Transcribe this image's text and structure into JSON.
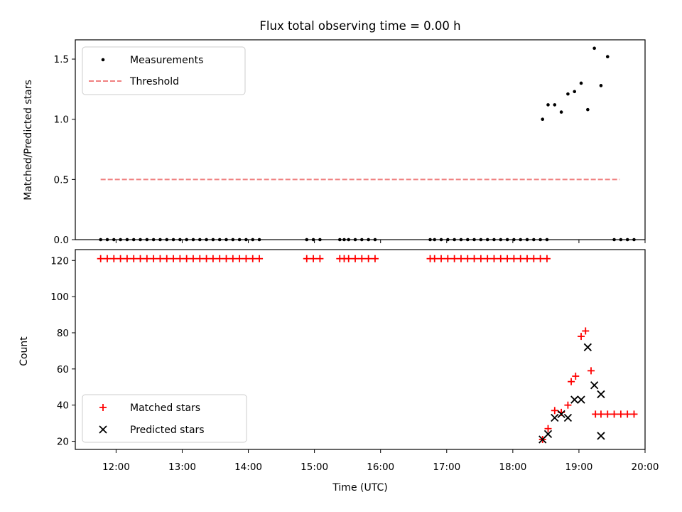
{
  "chart_data": [
    {
      "type": "scatter",
      "title": "Flux total observing time = 0.00 h",
      "xlabel": "",
      "ylabel": "Matched/Predicted stars",
      "xlim": [
        "11:23",
        "20:00"
      ],
      "ylim": [
        0,
        1.66
      ],
      "yticks": [
        0.0,
        0.5,
        1.0,
        1.5
      ],
      "ytick_labels": [
        "0.0",
        "0.5",
        "1.0",
        "1.5"
      ],
      "legend": {
        "position": "upper-left",
        "entries": [
          "Measurements",
          "Threshold"
        ]
      },
      "grid": false,
      "series": [
        {
          "name": "Measurements",
          "marker": "dot",
          "color": "#000000",
          "x": [
            "11:46",
            "11:52",
            "11:58",
            "12:04",
            "12:10",
            "12:16",
            "12:22",
            "12:28",
            "12:34",
            "12:40",
            "12:46",
            "12:52",
            "12:58",
            "13:04",
            "13:10",
            "13:16",
            "13:22",
            "13:28",
            "13:34",
            "13:40",
            "13:46",
            "13:52",
            "13:58",
            "14:04",
            "14:10",
            "14:53",
            "14:59",
            "15:05",
            "15:23",
            "15:27",
            "15:31",
            "15:37",
            "15:43",
            "15:49",
            "15:55",
            "16:45",
            "16:49",
            "16:55",
            "17:01",
            "17:07",
            "17:13",
            "17:19",
            "17:25",
            "17:31",
            "17:37",
            "17:43",
            "17:49",
            "17:55",
            "18:01",
            "18:07",
            "18:13",
            "18:19",
            "18:25",
            "18:31",
            "18:27",
            "18:32",
            "18:38",
            "18:44",
            "18:50",
            "18:56",
            "19:02",
            "19:08",
            "19:14",
            "19:20",
            "19:26",
            "19:32",
            "19:38",
            "19:44",
            "19:50"
          ],
          "y": [
            0,
            0,
            0,
            0,
            0,
            0,
            0,
            0,
            0,
            0,
            0,
            0,
            0,
            0,
            0,
            0,
            0,
            0,
            0,
            0,
            0,
            0,
            0,
            0,
            0,
            0,
            0,
            0,
            0,
            0,
            0,
            0,
            0,
            0,
            0,
            0,
            0,
            0,
            0,
            0,
            0,
            0,
            0,
            0,
            0,
            0,
            0,
            0,
            0,
            0,
            0,
            0,
            0,
            0,
            1.0,
            1.12,
            1.12,
            1.06,
            1.21,
            1.23,
            1.3,
            1.08,
            1.59,
            1.28,
            1.52,
            0,
            0,
            0,
            0
          ]
        },
        {
          "name": "Threshold",
          "type": "line",
          "style": "dashed",
          "color": "#f08080",
          "x": [
            "11:46",
            "19:37"
          ],
          "y": [
            0.5,
            0.5
          ]
        }
      ]
    },
    {
      "type": "scatter",
      "title": "",
      "xlabel": "Time (UTC)",
      "ylabel": "Count",
      "xlim": [
        "11:23",
        "20:00"
      ],
      "xticks": [
        "12:00",
        "13:00",
        "14:00",
        "15:00",
        "16:00",
        "17:00",
        "18:00",
        "19:00",
        "20:00"
      ],
      "ylim": [
        15.5,
        126
      ],
      "yticks": [
        20,
        40,
        60,
        80,
        100,
        120
      ],
      "ytick_labels": [
        "20",
        "40",
        "60",
        "80",
        "100",
        "120"
      ],
      "legend": {
        "position": "lower-left",
        "entries": [
          "Matched stars",
          "Predicted stars"
        ]
      },
      "grid": false,
      "series": [
        {
          "name": "Matched stars",
          "marker": "plus",
          "color": "#ff0000",
          "x": [
            "11:46",
            "11:52",
            "11:58",
            "12:04",
            "12:10",
            "12:16",
            "12:22",
            "12:28",
            "12:34",
            "12:40",
            "12:46",
            "12:52",
            "12:58",
            "13:04",
            "13:10",
            "13:16",
            "13:22",
            "13:28",
            "13:34",
            "13:40",
            "13:46",
            "13:52",
            "13:58",
            "14:04",
            "14:10",
            "14:53",
            "14:59",
            "15:05",
            "15:23",
            "15:27",
            "15:31",
            "15:37",
            "15:43",
            "15:49",
            "15:55",
            "16:45",
            "16:49",
            "16:55",
            "17:01",
            "17:07",
            "17:13",
            "17:19",
            "17:25",
            "17:31",
            "17:37",
            "17:43",
            "17:49",
            "17:55",
            "18:01",
            "18:07",
            "18:13",
            "18:19",
            "18:25",
            "18:31",
            "18:27",
            "18:32",
            "18:38",
            "18:44",
            "18:50",
            "18:53",
            "18:57",
            "19:02",
            "19:06",
            "19:11",
            "19:15",
            "19:20",
            "19:26",
            "19:32",
            "19:38",
            "19:44",
            "19:50"
          ],
          "y": [
            121,
            121,
            121,
            121,
            121,
            121,
            121,
            121,
            121,
            121,
            121,
            121,
            121,
            121,
            121,
            121,
            121,
            121,
            121,
            121,
            121,
            121,
            121,
            121,
            121,
            121,
            121,
            121,
            121,
            121,
            121,
            121,
            121,
            121,
            121,
            121,
            121,
            121,
            121,
            121,
            121,
            121,
            121,
            121,
            121,
            121,
            121,
            121,
            121,
            121,
            121,
            121,
            121,
            121,
            21,
            27,
            37,
            36,
            40,
            53,
            56,
            78,
            81,
            59,
            35,
            35,
            35,
            35,
            35,
            35,
            35
          ]
        },
        {
          "name": "Predicted stars",
          "marker": "x",
          "color": "#000000",
          "x": [
            "18:27",
            "18:32",
            "18:38",
            "18:44",
            "18:50",
            "18:56",
            "19:02",
            "19:08",
            "19:14",
            "19:20"
          ],
          "y": [
            21,
            24,
            33,
            35,
            33,
            43,
            43,
            72,
            51,
            46
          ]
        },
        {
          "name": "",
          "marker": "x",
          "color": "#000000",
          "x": [
            "19:20"
          ],
          "y": [
            23
          ]
        }
      ]
    }
  ]
}
